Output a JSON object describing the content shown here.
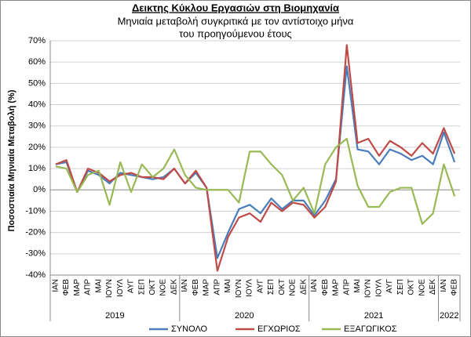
{
  "chart_data": {
    "type": "line",
    "title": "Δεικτης Κύκλου Εργασιών στη Βιομηχανία",
    "subtitle": [
      "Μηνιαία μεταβολή συγκριτικά με τον αντίστοιχο μήνα",
      "του προηγούμενου έτους"
    ],
    "y_label": "Ποσοστιαία Μηνιαία Μεταβολή (%)",
    "categories": [
      "ΙΑΝ",
      "ΦΕΒ",
      "ΜΑΡ",
      "ΑΠΡ",
      "ΜΑΙ",
      "ΙΟΥΝ",
      "ΙΟΥΛ",
      "ΑΥΓ",
      "ΣΕΠ",
      "ΟΚΤ",
      "ΝΟΕ",
      "ΔΕΚ",
      "ΙΑΝ",
      "ΦΕΒ",
      "ΜΑΡ",
      "ΑΠΡ",
      "ΜΑΙ",
      "ΙΟΥΝ",
      "ΙΟΥΛ",
      "ΑΥΓ",
      "ΣΕΠ",
      "ΟΚΤ",
      "ΝΟΕ",
      "ΔΕΚ",
      "ΙΑΝ",
      "ΦΕΒ",
      "ΜΑΡ",
      "ΑΠΡ",
      "ΜΑΙ",
      "ΙΟΥΝ",
      "ΙΟΥΛ",
      "ΑΥΓ",
      "ΣΕΠ",
      "ΟΚΤ",
      "ΝΟΕ",
      "ΔΕΚ",
      "ΙΑΝ",
      "ΦΕΒ"
    ],
    "years": [
      "2019",
      "2020",
      "2021",
      "2022"
    ],
    "series": [
      {
        "name": "ΣΥΝΟΛΟ",
        "color": "#4a7ebb",
        "values": [
          12,
          13,
          -1,
          9,
          7,
          3,
          8,
          7,
          6,
          5,
          6,
          10,
          3,
          8,
          1,
          -32,
          -20,
          -9,
          -7,
          -11,
          -4,
          -9,
          -5,
          -5,
          -12,
          -5,
          5,
          58,
          19,
          18,
          12,
          19,
          17,
          14,
          16,
          12,
          27,
          13
        ]
      },
      {
        "name": "ΕΓΧΩΡΙΟΣ",
        "color": "#be4b48",
        "values": [
          12,
          14,
          -1,
          10,
          8,
          4,
          7,
          8,
          6,
          6,
          5,
          10,
          3,
          9,
          1,
          -38,
          -22,
          -13,
          -11,
          -15,
          -6,
          -10,
          -6,
          -7,
          -13,
          -8,
          4,
          68,
          22,
          24,
          16,
          23,
          20,
          16,
          22,
          17,
          29,
          17
        ]
      },
      {
        "name": "ΕΞΑΓΩΓΙΚΟΣ",
        "color": "#98b954",
        "values": [
          11,
          10,
          -1,
          7,
          9,
          -7,
          13,
          -1,
          12,
          6,
          10,
          19,
          7,
          1,
          0,
          0,
          0,
          -6,
          18,
          18,
          12,
          7,
          -5,
          1,
          -11,
          12,
          20,
          24,
          2,
          -8,
          -8,
          -1,
          1,
          1,
          -16,
          -11,
          12,
          -3
        ]
      }
    ],
    "ylim": [
      -40,
      70
    ],
    "yticks": [
      {
        "value": -40,
        "label": "-40%"
      },
      {
        "value": -30,
        "label": "-30%"
      },
      {
        "value": -20,
        "label": "-20%"
      },
      {
        "value": -10,
        "label": "-10%"
      },
      {
        "value": 0,
        "label": "0%"
      },
      {
        "value": 10,
        "label": "10%"
      },
      {
        "value": 20,
        "label": "20%"
      },
      {
        "value": 30,
        "label": "30%"
      },
      {
        "value": 40,
        "label": "40%"
      },
      {
        "value": 50,
        "label": "50%"
      },
      {
        "value": 60,
        "label": "60%"
      },
      {
        "value": 70,
        "label": "70%"
      }
    ],
    "grid": true
  }
}
